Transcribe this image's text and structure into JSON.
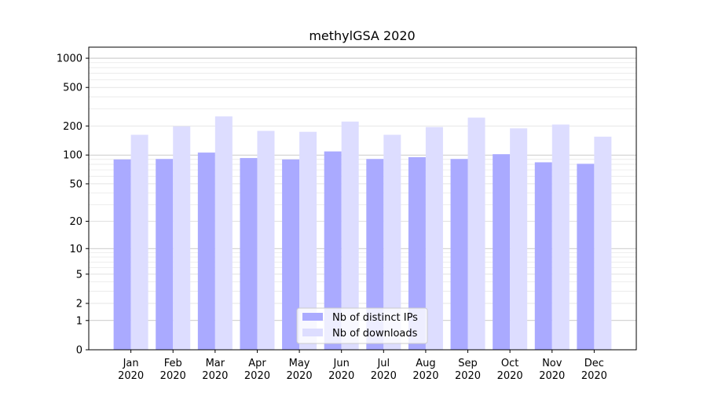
{
  "chart_data": {
    "type": "bar",
    "title": "methylGSA 2020",
    "xlabel": "",
    "ylabel": "",
    "categories": [
      "Jan\n2020",
      "Feb\n2020",
      "Mar\n2020",
      "Apr\n2020",
      "May\n2020",
      "Jun\n2020",
      "Jul\n2020",
      "Aug\n2020",
      "Sep\n2020",
      "Oct\n2020",
      "Nov\n2020",
      "Dec\n2020"
    ],
    "series": [
      {
        "name": "Nb of distinct IPs",
        "color": "#aaaaff",
        "values": [
          90,
          91,
          106,
          93,
          90,
          109,
          91,
          95,
          91,
          102,
          84,
          81
        ]
      },
      {
        "name": "Nb of downloads",
        "color": "#ddddff",
        "values": [
          162,
          198,
          251,
          178,
          174,
          222,
          162,
          195,
          244,
          189,
          207,
          155
        ]
      }
    ],
    "yscale": "log1p",
    "ylim": [
      0,
      1300
    ],
    "yticks": [
      0,
      1,
      2,
      5,
      10,
      20,
      50,
      100,
      200,
      500,
      1000
    ],
    "ytick_labels": [
      "0",
      "1",
      "2",
      "5",
      "10",
      "20",
      "50",
      "100",
      "200",
      "500",
      "1000"
    ],
    "grid": true,
    "legend_position": "lower-center"
  }
}
